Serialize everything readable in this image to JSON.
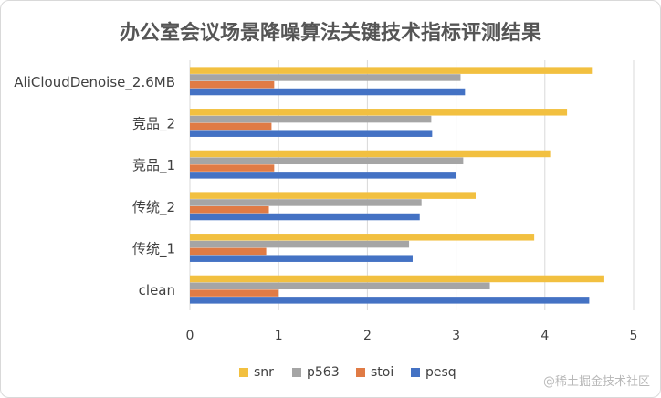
{
  "chart_data": {
    "type": "bar",
    "orientation": "horizontal",
    "title": "办公室会议场景降噪算法关键技术指标评测结果",
    "categories": [
      "AliCloudDenoise_2.6MB",
      "竞品_2",
      "竞品_1",
      "传统_2",
      "传统_1",
      "clean"
    ],
    "series": [
      {
        "name": "snr",
        "color": "#F2C040",
        "values": [
          4.53,
          4.25,
          4.06,
          3.22,
          3.88,
          4.67
        ]
      },
      {
        "name": "p563",
        "color": "#A5A5A5",
        "values": [
          3.05,
          2.72,
          3.08,
          2.61,
          2.47,
          3.38
        ]
      },
      {
        "name": "stoi",
        "color": "#E07B45",
        "values": [
          0.95,
          0.92,
          0.95,
          0.89,
          0.86,
          1.0
        ]
      },
      {
        "name": "pesq",
        "color": "#4472C4",
        "values": [
          3.1,
          2.73,
          3.0,
          2.59,
          2.51,
          4.5
        ]
      }
    ],
    "xlim": [
      0,
      5
    ],
    "xticks": [
      "0",
      "1",
      "2",
      "3",
      "4",
      "5"
    ],
    "grid": true,
    "legend_position": "bottom"
  },
  "watermark": "@稀土掘金技术社区"
}
